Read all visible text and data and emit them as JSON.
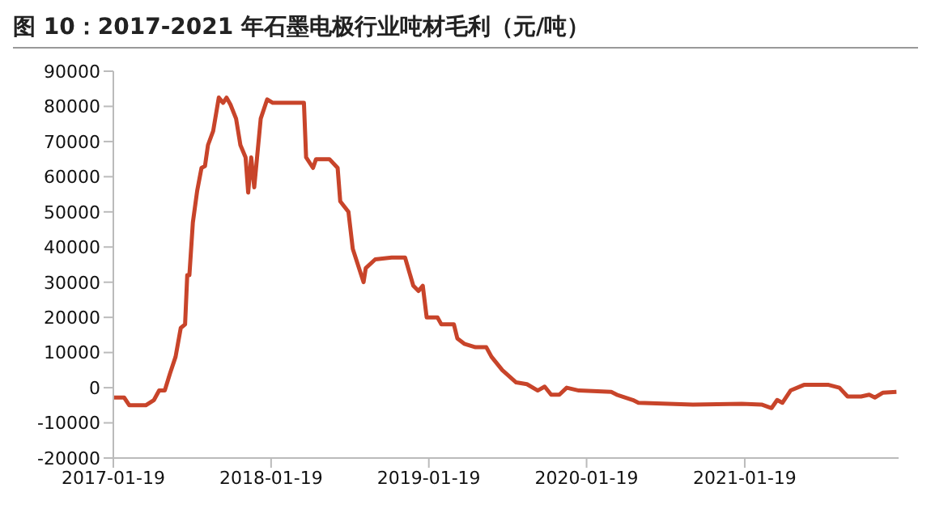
{
  "chart_data": {
    "type": "line",
    "title": "图 10：2017-2021 年石墨电极行业吨材毛利（元/吨）",
    "x": [
      "2017-01-19",
      "2017-02-13",
      "2017-02-25",
      "2017-04-04",
      "2017-04-23",
      "2017-05-05",
      "2017-05-18",
      "2017-05-30",
      "2017-06-12",
      "2017-06-24",
      "2017-07-04",
      "2017-07-09",
      "2017-07-14",
      "2017-07-22",
      "2017-08-01",
      "2017-08-11",
      "2017-08-19",
      "2017-08-26",
      "2017-09-07",
      "2017-09-20",
      "2017-09-30",
      "2017-10-08",
      "2017-10-17",
      "2017-10-30",
      "2017-11-09",
      "2017-11-21",
      "2017-11-27",
      "2017-12-04",
      "2017-12-11",
      "2017-12-26",
      "2018-01-10",
      "2018-01-23",
      "2018-04-05",
      "2018-04-10",
      "2018-04-26",
      "2018-05-03",
      "2018-06-03",
      "2018-06-22",
      "2018-06-28",
      "2018-07-17",
      "2018-07-27",
      "2018-08-21",
      "2018-08-26",
      "2018-09-17",
      "2018-10-25",
      "2018-11-25",
      "2018-12-14",
      "2018-12-26",
      "2019-01-05",
      "2019-01-14",
      "2019-02-08",
      "2019-02-17",
      "2019-03-18",
      "2019-03-26",
      "2019-04-11",
      "2019-05-07",
      "2019-06-01",
      "2019-06-13",
      "2019-07-08",
      "2019-08-09",
      "2019-09-03",
      "2019-09-28",
      "2019-10-14",
      "2019-10-29",
      "2019-11-17",
      "2019-12-04",
      "2020-01-01",
      "2020-03-16",
      "2020-03-29",
      "2020-05-05",
      "2020-05-18",
      "2020-09-21",
      "2021-01-12",
      "2021-02-27",
      "2021-03-22",
      "2021-04-04",
      "2021-04-16",
      "2021-05-05",
      "2021-06-05",
      "2021-08-01",
      "2021-08-26",
      "2021-09-14",
      "2021-10-15",
      "2021-11-03",
      "2021-11-16",
      "2021-12-05",
      "2022-01-05"
    ],
    "series": [
      {
        "color": "#c8442a",
        "values": [
          -2800,
          -2800,
          -5000,
          -5000,
          -3500,
          -800,
          -800,
          4000,
          8800,
          17000,
          18000,
          32000,
          32000,
          47000,
          56000,
          62500,
          63000,
          69000,
          73000,
          82500,
          81000,
          82500,
          80500,
          76500,
          69000,
          65500,
          55500,
          65500,
          57000,
          76500,
          82000,
          81000,
          81000,
          65500,
          62500,
          65000,
          65000,
          62500,
          53000,
          50000,
          39500,
          30000,
          34000,
          36500,
          37000,
          37000,
          29000,
          27500,
          29000,
          20000,
          20000,
          18000,
          18000,
          14000,
          12500,
          11500,
          11500,
          8800,
          5000,
          1500,
          1000,
          -800,
          300,
          -2000,
          -2000,
          0,
          -800,
          -1200,
          -2000,
          -3500,
          -4300,
          -4800,
          -4600,
          -4800,
          -5800,
          -3500,
          -4300,
          -800,
          800,
          800,
          0,
          -2500,
          -2500,
          -2000,
          -2800,
          -1400,
          -1200
        ]
      }
    ],
    "xlim": [
      "2017-01-19",
      "2022-01-10"
    ],
    "xticks": [
      "2017-01-19",
      "2018-01-19",
      "2019-01-19",
      "2020-01-19",
      "2021-01-19"
    ],
    "ylim": [
      -20000,
      90000
    ],
    "yticks": [
      -20000,
      -10000,
      0,
      10000,
      20000,
      30000,
      40000,
      50000,
      60000,
      70000,
      80000,
      90000
    ],
    "grid": false,
    "legend": false,
    "marker": "none",
    "line_style": "solid"
  }
}
